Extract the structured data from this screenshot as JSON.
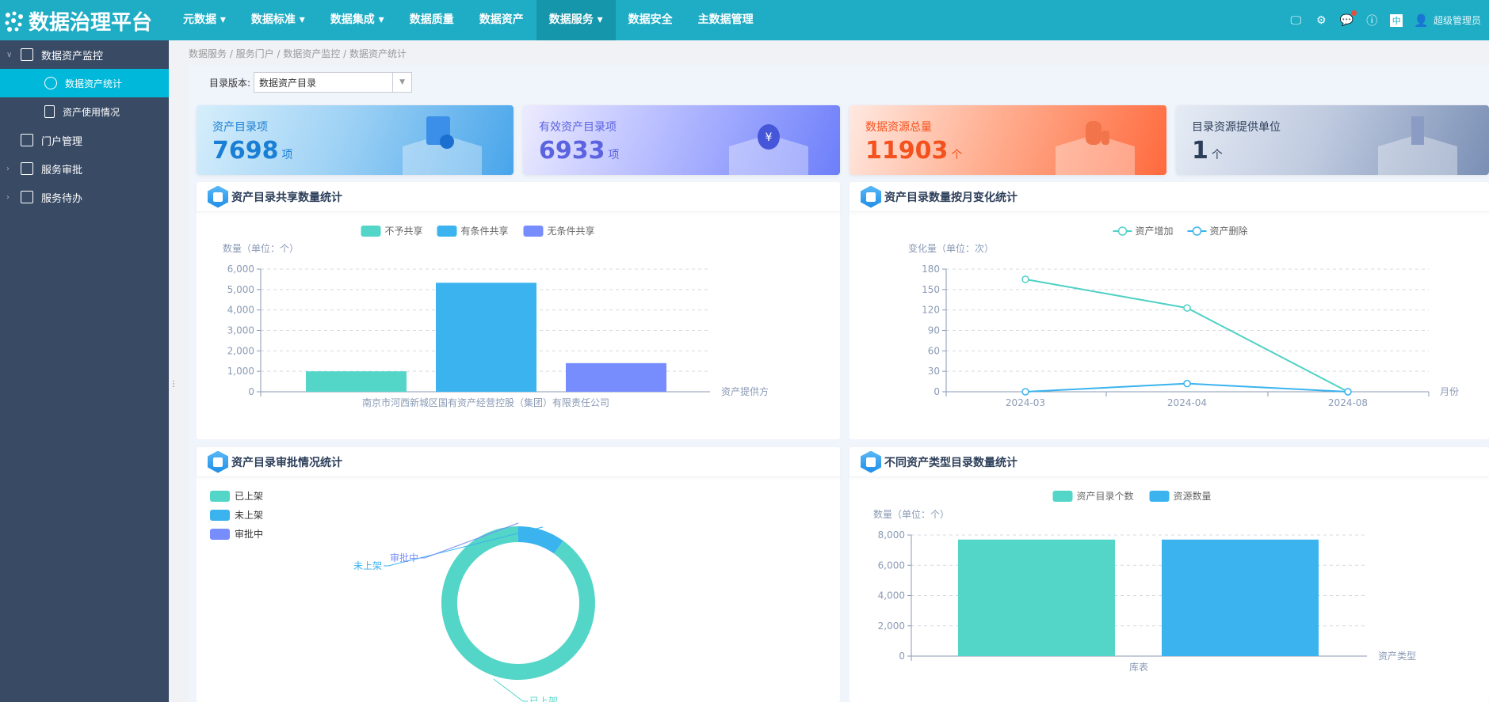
{
  "header": {
    "logo": "数据治理平台",
    "nav": [
      {
        "label": "元数据",
        "dropdown": true
      },
      {
        "label": "数据标准",
        "dropdown": true
      },
      {
        "label": "数据集成",
        "dropdown": true
      },
      {
        "label": "数据质量",
        "dropdown": false
      },
      {
        "label": "数据资产",
        "dropdown": false
      },
      {
        "label": "数据服务",
        "dropdown": true,
        "active": true
      },
      {
        "label": "数据安全",
        "dropdown": false
      },
      {
        "label": "主数据管理",
        "dropdown": false
      }
    ],
    "icons": [
      "monitor-icon",
      "gear-icon",
      "message-icon",
      "info-icon",
      "language-icon"
    ],
    "lang": "中",
    "user": "超级管理员"
  },
  "sidebar": {
    "items": [
      {
        "label": "数据资产监控",
        "expanded": true
      },
      {
        "label": "数据资产统计",
        "active": true
      },
      {
        "label": "资产使用情况"
      },
      {
        "label": "门户管理"
      },
      {
        "label": "服务审批"
      },
      {
        "label": "服务待办"
      }
    ]
  },
  "breadcrumb": "数据服务 / 服务门户 / 数据资产监控 / 数据资产统计",
  "version": {
    "label": "目录版本:",
    "value": "数据资产目录"
  },
  "cards": [
    {
      "label": "资产目录项",
      "value": "7698",
      "unit": "项",
      "color": "#1a7fd4"
    },
    {
      "label": "有效资产目录项",
      "value": "6933",
      "unit": "项",
      "color": "#5b63e0"
    },
    {
      "label": "数据资源总量",
      "value": "11903",
      "unit": "个",
      "color": "#f4511e"
    },
    {
      "label": "目录资源提供单位",
      "value": "1",
      "unit": "个",
      "color": "#2c3e5a"
    }
  ],
  "panels": {
    "p1": "资产目录共享数量统计",
    "p2": "资产目录数量按月变化统计",
    "p3": "资产目录审批情况统计",
    "p4": "不同资产类型目录数量统计"
  },
  "chart_data": [
    {
      "type": "bar",
      "categories": [
        "南京市河西新城区国有资产经营控股（集团）有限责任公司"
      ],
      "series": [
        {
          "name": "不予共享",
          "values": [
            1000
          ],
          "color": "#53d5c8"
        },
        {
          "name": "有条件共享",
          "values": [
            5330
          ],
          "color": "#3ab3ee"
        },
        {
          "name": "无条件共享",
          "values": [
            1400
          ],
          "color": "#778cfd"
        }
      ],
      "ylabel": "数量（单位：个）",
      "xlabel": "资产提供方",
      "ylim": [
        0,
        6000
      ],
      "yticks": [
        "0",
        "1,000",
        "2,000",
        "3,000",
        "4,000",
        "5,000",
        "6,000"
      ],
      "legend": "top",
      "grid": true
    },
    {
      "type": "line",
      "x": [
        "2024-03",
        "2024-04",
        "2024-08"
      ],
      "series": [
        {
          "name": "资产增加",
          "values": [
            165,
            123,
            0
          ],
          "color": "#4fd1c5"
        },
        {
          "name": "资产删除",
          "values": [
            0,
            12,
            0
          ],
          "color": "#3ab3ee"
        }
      ],
      "ylabel": "变化量（单位：次）",
      "xlabel": "月份",
      "ylim": [
        0,
        180
      ],
      "yticks": [
        "0",
        "30",
        "60",
        "90",
        "120",
        "150",
        "180"
      ],
      "legend": "top",
      "grid": true
    },
    {
      "type": "pie",
      "donut": true,
      "slices": [
        {
          "name": "已上架",
          "value": 6933,
          "color": "#53d5c8"
        },
        {
          "name": "未上架",
          "value": 765,
          "color": "#3ab3ee"
        },
        {
          "name": "审批中",
          "value": 0,
          "color": "#778cfd"
        }
      ],
      "legend": "top-left"
    },
    {
      "type": "bar",
      "categories": [
        "库表"
      ],
      "series": [
        {
          "name": "资产目录个数",
          "values": [
            7698
          ],
          "color": "#53d5c8"
        },
        {
          "name": "资源数量",
          "values": [
            7698
          ],
          "color": "#3ab3ee"
        }
      ],
      "ylabel": "数量（单位：个）",
      "xlabel": "资产类型",
      "ylim": [
        0,
        8000
      ],
      "yticks": [
        "0",
        "2,000",
        "4,000",
        "6,000",
        "8,000"
      ],
      "legend": "top",
      "grid": true
    }
  ]
}
